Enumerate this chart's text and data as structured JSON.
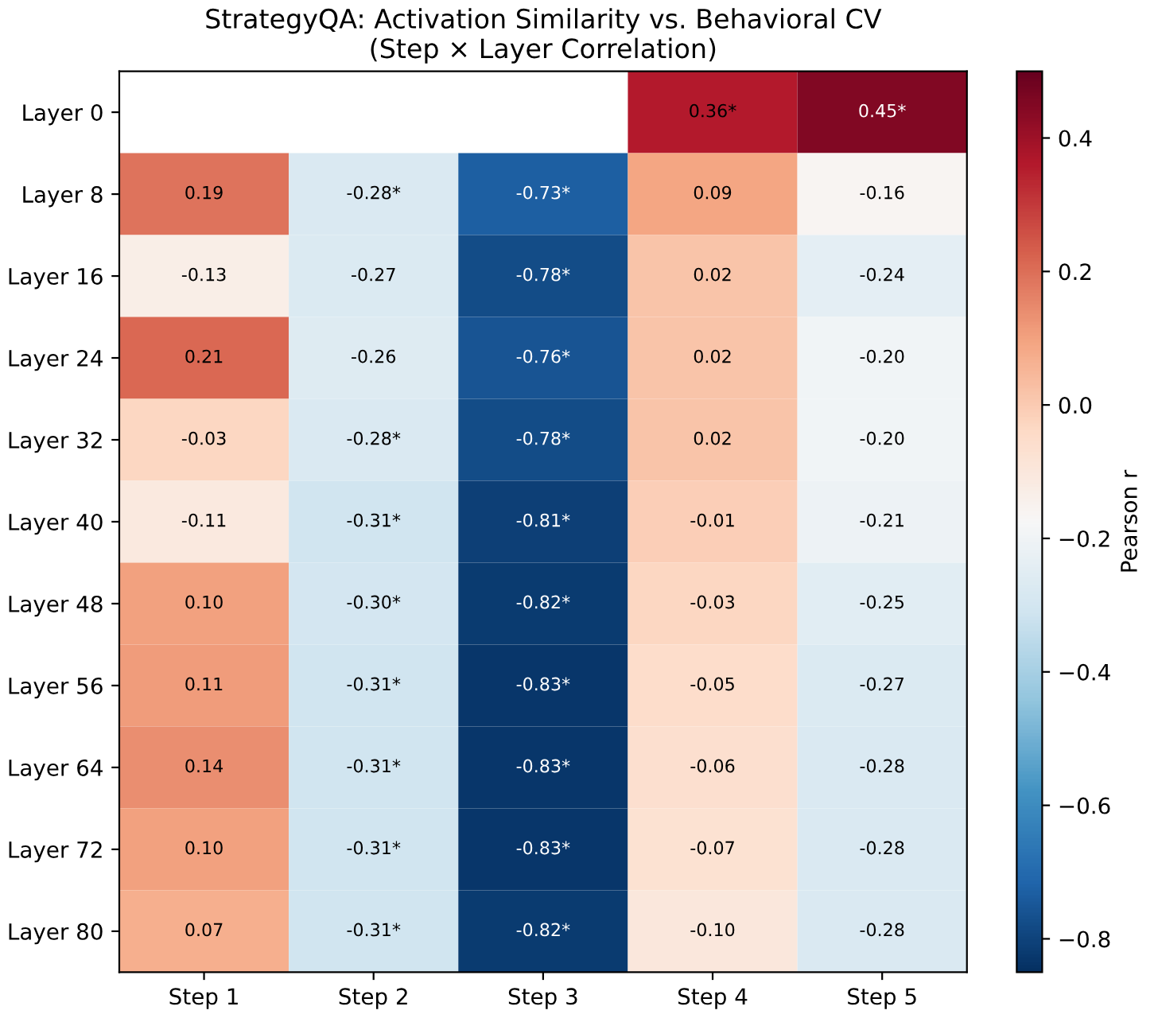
{
  "chart_data": {
    "type": "heatmap",
    "title": "StrategyQA: Activation Similarity vs. Behavioral CV\n(Step × Layer Correlation)",
    "categories": [
      "Step 1",
      "Step 2",
      "Step 3",
      "Step 4",
      "Step 5"
    ],
    "y_categories": [
      "Layer 0",
      "Layer 8",
      "Layer 16",
      "Layer 24",
      "Layer 32",
      "Layer 40",
      "Layer 48",
      "Layer 56",
      "Layer 64",
      "Layer 72",
      "Layer 80"
    ],
    "cells": [
      [
        null,
        null,
        null,
        0.36,
        0.45
      ],
      [
        0.19,
        -0.28,
        -0.73,
        0.09,
        -0.16
      ],
      [
        -0.13,
        -0.27,
        -0.78,
        0.02,
        -0.24
      ],
      [
        0.21,
        -0.26,
        -0.76,
        0.02,
        -0.2
      ],
      [
        -0.03,
        -0.28,
        -0.78,
        0.02,
        -0.2
      ],
      [
        -0.11,
        -0.31,
        -0.81,
        -0.01,
        -0.21
      ],
      [
        0.1,
        -0.3,
        -0.82,
        -0.03,
        -0.25
      ],
      [
        0.11,
        -0.31,
        -0.83,
        -0.05,
        -0.27
      ],
      [
        0.14,
        -0.31,
        -0.83,
        -0.06,
        -0.28
      ],
      [
        0.1,
        -0.31,
        -0.83,
        -0.07,
        -0.28
      ],
      [
        0.07,
        -0.31,
        -0.82,
        -0.1,
        -0.28
      ]
    ],
    "cell_labels": [
      [
        null,
        null,
        null,
        "0.36*",
        "0.45*"
      ],
      [
        "0.19",
        "-0.28*",
        "-0.73*",
        "0.09",
        "-0.16"
      ],
      [
        "-0.13",
        "-0.27",
        "-0.78*",
        "0.02",
        "-0.24"
      ],
      [
        "0.21",
        "-0.26",
        "-0.76*",
        "0.02",
        "-0.20"
      ],
      [
        "-0.03",
        "-0.28*",
        "-0.78*",
        "0.02",
        "-0.20"
      ],
      [
        "-0.11",
        "-0.31*",
        "-0.81*",
        "-0.01",
        "-0.21"
      ],
      [
        "0.10",
        "-0.30*",
        "-0.82*",
        "-0.03",
        "-0.25"
      ],
      [
        "0.11",
        "-0.31*",
        "-0.83*",
        "-0.05",
        "-0.27"
      ],
      [
        "0.14",
        "-0.31*",
        "-0.83*",
        "-0.06",
        "-0.28"
      ],
      [
        "0.10",
        "-0.31*",
        "-0.83*",
        "-0.07",
        "-0.28"
      ],
      [
        "0.07",
        "-0.31*",
        "-0.82*",
        "-0.10",
        "-0.28"
      ]
    ],
    "clabel": "Pearson r",
    "clim": [
      -0.85,
      0.5
    ],
    "cticks": [
      {
        "value": -0.8,
        "label": "−0.8"
      },
      {
        "value": -0.6,
        "label": "−0.6"
      },
      {
        "value": -0.4,
        "label": "−0.4"
      },
      {
        "value": -0.2,
        "label": "−0.2"
      },
      {
        "value": 0.0,
        "label": "0.0"
      },
      {
        "value": 0.2,
        "label": "0.2"
      },
      {
        "value": 0.4,
        "label": "0.4"
      }
    ]
  }
}
